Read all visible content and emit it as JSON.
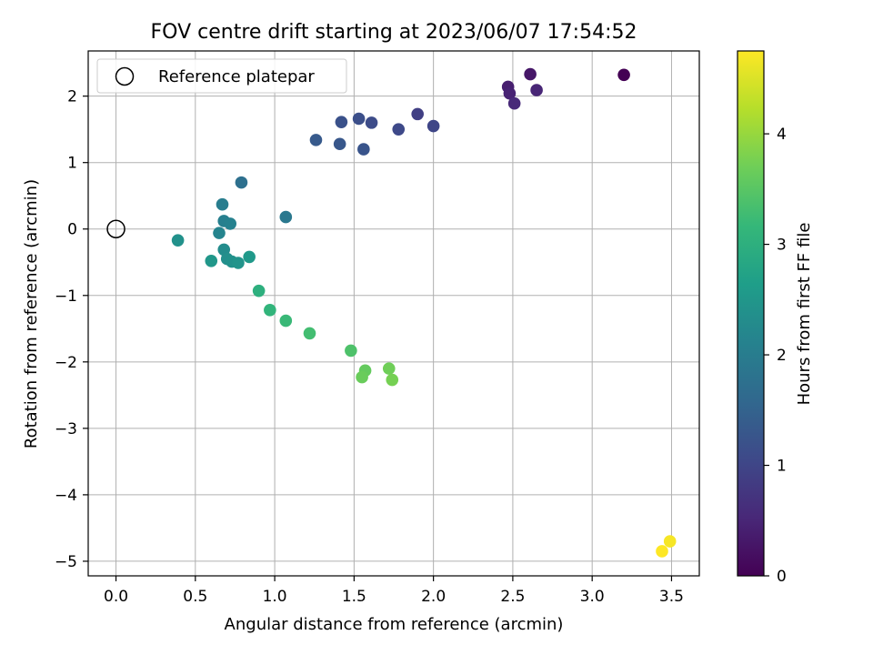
{
  "chart_data": {
    "type": "scatter",
    "title": "FOV centre drift starting at 2023/06/07 17:54:52",
    "xlabel": "Angular distance from reference (arcmin)",
    "ylabel": "Rotation from reference (arcmin)",
    "xlim": [
      -0.175,
      3.675
    ],
    "ylim": [
      -5.22,
      2.68
    ],
    "xticks": [
      0.0,
      0.5,
      1.0,
      1.5,
      2.0,
      2.5,
      3.0,
      3.5
    ],
    "xtick_labels": [
      "0.0",
      "0.5",
      "1.0",
      "1.5",
      "2.0",
      "2.5",
      "3.0",
      "3.5"
    ],
    "yticks": [
      2,
      1,
      0,
      -1,
      -2,
      -3,
      -4,
      -5
    ],
    "ytick_labels": [
      "2",
      "1",
      "0",
      "−1",
      "−2",
      "−3",
      "−4",
      "−5"
    ],
    "grid": true,
    "legend": {
      "position": "top-left",
      "entries": [
        "Reference platepar"
      ]
    },
    "reference_point": {
      "x": 0.0,
      "y": 0.0,
      "marker": "open-circle"
    },
    "colorbar": {
      "label": "Hours from first FF file",
      "colormap": "viridis",
      "range": [
        0,
        4.75
      ],
      "ticks": [
        0,
        1,
        2,
        3,
        4
      ],
      "tick_labels": [
        "0",
        "1",
        "2",
        "3",
        "4"
      ],
      "colormap_stops": [
        "#440154",
        "#482878",
        "#3e4989",
        "#31688e",
        "#26828e",
        "#1f9e89",
        "#35b779",
        "#6ece58",
        "#b5de2b",
        "#fde725"
      ]
    },
    "points": [
      {
        "x": 3.2,
        "y": 2.32,
        "hours": 0.0
      },
      {
        "x": 2.61,
        "y": 2.33,
        "hours": 0.3
      },
      {
        "x": 2.47,
        "y": 2.14,
        "hours": 0.4
      },
      {
        "x": 2.48,
        "y": 2.04,
        "hours": 0.45
      },
      {
        "x": 2.65,
        "y": 2.09,
        "hours": 0.5
      },
      {
        "x": 2.51,
        "y": 1.89,
        "hours": 0.55
      },
      {
        "x": 1.9,
        "y": 1.73,
        "hours": 0.9
      },
      {
        "x": 2.0,
        "y": 1.55,
        "hours": 1.0
      },
      {
        "x": 1.78,
        "y": 1.5,
        "hours": 1.05
      },
      {
        "x": 1.61,
        "y": 1.6,
        "hours": 1.1
      },
      {
        "x": 1.53,
        "y": 1.66,
        "hours": 1.15
      },
      {
        "x": 1.42,
        "y": 1.61,
        "hours": 1.2
      },
      {
        "x": 1.56,
        "y": 1.2,
        "hours": 1.25
      },
      {
        "x": 1.41,
        "y": 1.28,
        "hours": 1.3
      },
      {
        "x": 1.26,
        "y": 1.34,
        "hours": 1.35
      },
      {
        "x": 0.79,
        "y": 0.7,
        "hours": 1.75
      },
      {
        "x": 1.07,
        "y": 0.18,
        "hours": 1.9
      },
      {
        "x": 0.67,
        "y": 0.37,
        "hours": 2.0
      },
      {
        "x": 0.68,
        "y": 0.12,
        "hours": 2.05
      },
      {
        "x": 0.72,
        "y": 0.08,
        "hours": 2.1
      },
      {
        "x": 0.65,
        "y": -0.06,
        "hours": 2.15
      },
      {
        "x": 0.39,
        "y": -0.17,
        "hours": 2.4
      },
      {
        "x": 0.68,
        "y": -0.31,
        "hours": 2.3
      },
      {
        "x": 0.7,
        "y": -0.45,
        "hours": 2.35
      },
      {
        "x": 0.73,
        "y": -0.49,
        "hours": 2.4
      },
      {
        "x": 0.77,
        "y": -0.51,
        "hours": 2.45
      },
      {
        "x": 0.6,
        "y": -0.48,
        "hours": 2.5
      },
      {
        "x": 0.84,
        "y": -0.42,
        "hours": 2.55
      },
      {
        "x": 0.9,
        "y": -0.93,
        "hours": 3.0
      },
      {
        "x": 0.97,
        "y": -1.22,
        "hours": 3.1
      },
      {
        "x": 1.07,
        "y": -1.38,
        "hours": 3.2
      },
      {
        "x": 1.22,
        "y": -1.57,
        "hours": 3.3
      },
      {
        "x": 1.48,
        "y": -1.83,
        "hours": 3.4
      },
      {
        "x": 1.57,
        "y": -2.13,
        "hours": 3.6
      },
      {
        "x": 1.55,
        "y": -2.23,
        "hours": 3.65
      },
      {
        "x": 1.72,
        "y": -2.1,
        "hours": 3.7
      },
      {
        "x": 1.74,
        "y": -2.27,
        "hours": 3.75
      },
      {
        "x": 3.49,
        "y": -4.7,
        "hours": 4.7
      },
      {
        "x": 3.44,
        "y": -4.85,
        "hours": 4.75
      }
    ]
  }
}
